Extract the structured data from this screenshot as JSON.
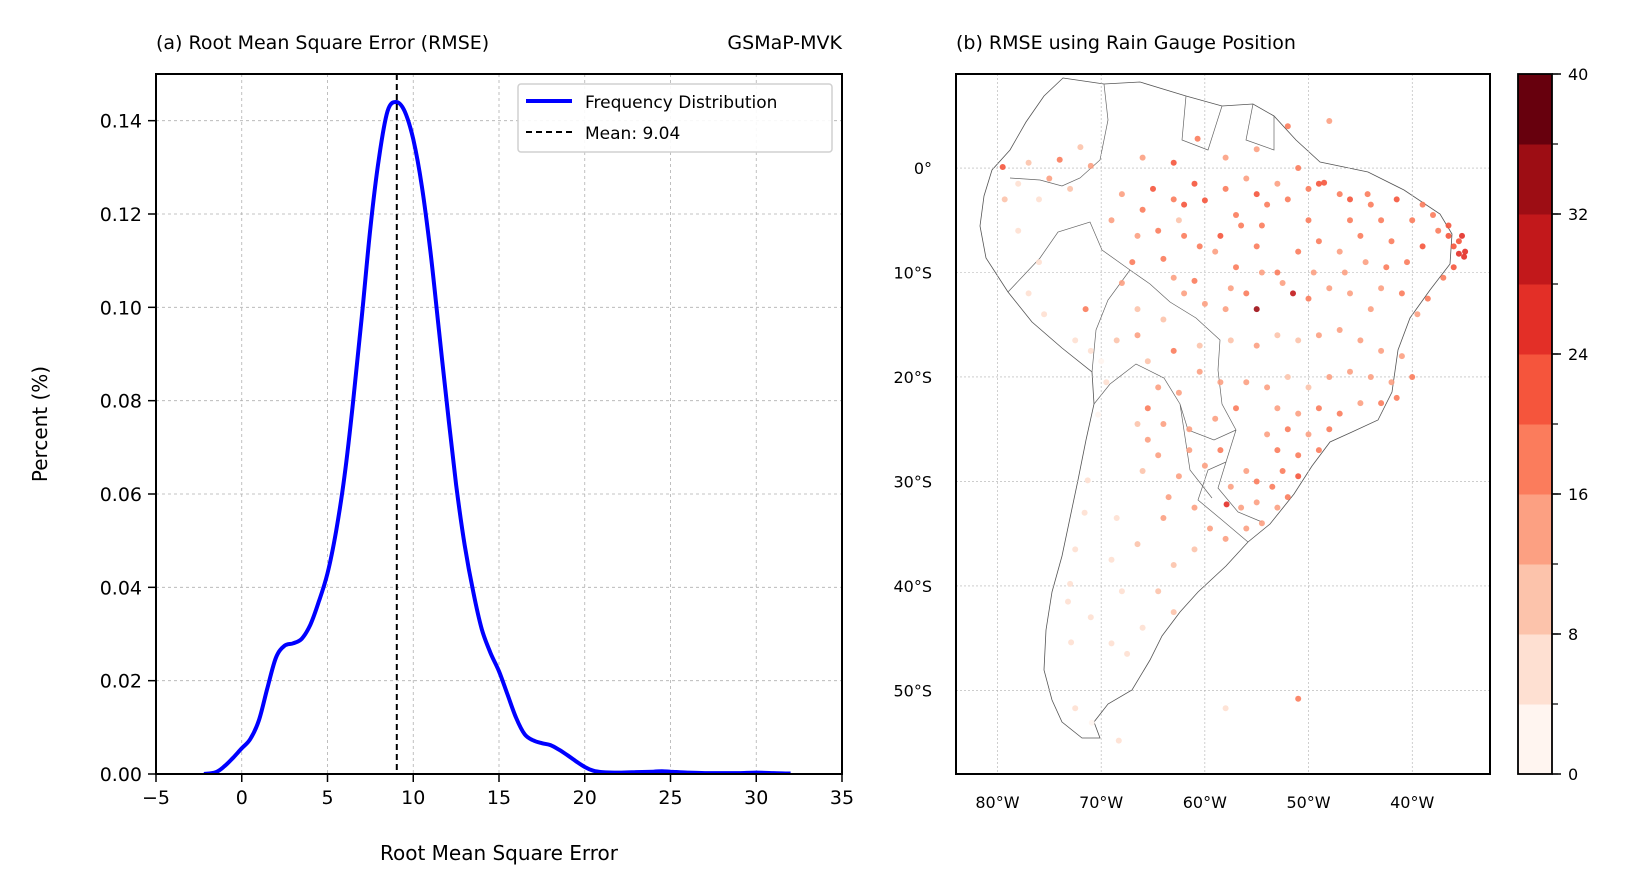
{
  "chart_data": [
    {
      "type": "line",
      "title": "(a) Root Mean Square Error (RMSE)",
      "title_right": "GSMaP-MVK",
      "xlabel": "Root Mean Square Error",
      "ylabel": "Percent (%)",
      "xlim": [
        -5,
        35
      ],
      "ylim": [
        0,
        0.15
      ],
      "xticks": [
        -5,
        0,
        5,
        10,
        15,
        20,
        25,
        30,
        35
      ],
      "xtick_labels": [
        "−5",
        "0",
        "5",
        "10",
        "15",
        "20",
        "25",
        "30",
        "35"
      ],
      "yticks": [
        0,
        0.02,
        0.04,
        0.06,
        0.08,
        0.1,
        0.12,
        0.14
      ],
      "ytick_labels": [
        "0.00",
        "0.02",
        "0.04",
        "0.06",
        "0.08",
        "0.10",
        "0.12",
        "0.14"
      ],
      "grid": true,
      "legend_position": "top-right",
      "series": [
        {
          "name": "Frequency Distribution",
          "color": "#0000ff",
          "x": [
            -2.2,
            -1.5,
            -1.0,
            -0.5,
            0.0,
            0.5,
            1.0,
            1.5,
            2.0,
            2.5,
            3.0,
            3.5,
            4.0,
            4.5,
            5.0,
            5.5,
            6.0,
            6.5,
            7.0,
            7.5,
            8.0,
            8.5,
            9.0,
            9.5,
            10.0,
            10.5,
            11.0,
            11.5,
            12.0,
            12.5,
            13.0,
            13.5,
            14.0,
            14.5,
            15.0,
            15.5,
            16.0,
            16.5,
            17.0,
            17.5,
            18.0,
            18.5,
            19.0,
            19.5,
            20.0,
            20.5,
            21.0,
            22.0,
            23.0,
            24.0,
            24.5,
            25.0,
            26.0,
            27.0,
            28.0,
            29.0,
            30.0,
            31.0,
            32.0
          ],
          "y": [
            0.0,
            0.0004,
            0.0017,
            0.0035,
            0.0055,
            0.0075,
            0.0115,
            0.0185,
            0.025,
            0.0275,
            0.028,
            0.029,
            0.032,
            0.037,
            0.043,
            0.052,
            0.064,
            0.08,
            0.098,
            0.117,
            0.132,
            0.142,
            0.144,
            0.142,
            0.136,
            0.126,
            0.112,
            0.095,
            0.078,
            0.062,
            0.049,
            0.039,
            0.031,
            0.026,
            0.022,
            0.017,
            0.012,
            0.0085,
            0.0072,
            0.0066,
            0.0062,
            0.0052,
            0.004,
            0.0027,
            0.0015,
            0.0007,
            0.0004,
            0.0003,
            0.0004,
            0.0005,
            0.0006,
            0.0005,
            0.0003,
            0.0002,
            0.0002,
            0.0002,
            0.0003,
            0.0002,
            0.0001
          ]
        }
      ],
      "mean_line": {
        "name": "Mean: 9.04",
        "value": 9.04,
        "color": "#000000"
      }
    },
    {
      "type": "scatter",
      "title": "(b) RMSE using Rain Gauge Position",
      "xlim": [
        -84,
        -32.5
      ],
      "ylim": [
        -58,
        9
      ],
      "xticks": [
        -80,
        -70,
        -60,
        -50,
        -40
      ],
      "xtick_labels": [
        "80°W",
        "70°W",
        "60°W",
        "50°W",
        "40°W"
      ],
      "yticks": [
        0,
        -10,
        -20,
        -30,
        -40,
        -50
      ],
      "ytick_labels": [
        "0°",
        "10°S",
        "20°S",
        "30°S",
        "40°S",
        "50°S"
      ],
      "grid": true,
      "colorbar": {
        "ticks": [
          0,
          8,
          16,
          24,
          32,
          40
        ],
        "tick_labels": [
          "0",
          "8",
          "16",
          "24",
          "32",
          "40"
        ],
        "colors": [
          "#fff5f0",
          "#fee0d2",
          "#fcc3ab",
          "#fca082",
          "#fb7c5c",
          "#f5553c",
          "#e32f27",
          "#c2181b",
          "#9d0d14",
          "#67000d"
        ]
      },
      "points": [
        [
          -79.5,
          0.1,
          22
        ],
        [
          -79.3,
          -3.0,
          10
        ],
        [
          -78.0,
          -1.5,
          6
        ],
        [
          -77.0,
          0.5,
          9
        ],
        [
          -76.0,
          -3.0,
          7
        ],
        [
          -75.0,
          -1.0,
          12
        ],
        [
          -74.0,
          0.8,
          16
        ],
        [
          -73.0,
          -2.0,
          11
        ],
        [
          -72.0,
          2.0,
          9
        ],
        [
          -71.0,
          0.2,
          14
        ],
        [
          -78.0,
          -6.0,
          5
        ],
        [
          -76.0,
          -9.0,
          4
        ],
        [
          -77.0,
          -12.0,
          4
        ],
        [
          -75.5,
          -14.0,
          5
        ],
        [
          -71.5,
          -13.5,
          16
        ],
        [
          -72.5,
          -16.5,
          6
        ],
        [
          -71.0,
          -17.5,
          4
        ],
        [
          -70.0,
          -18.5,
          3
        ],
        [
          -70.3,
          -23.6,
          3
        ],
        [
          -71.3,
          -29.9,
          4
        ],
        [
          -71.6,
          -33.0,
          4
        ],
        [
          -72.5,
          -36.5,
          5
        ],
        [
          -73.0,
          -39.8,
          4
        ],
        [
          -73.2,
          -41.5,
          5
        ],
        [
          -72.9,
          -45.4,
          5
        ],
        [
          -72.5,
          -51.7,
          6
        ],
        [
          -70.9,
          -53.1,
          3
        ],
        [
          -68.3,
          -54.8,
          4
        ],
        [
          -58.0,
          -51.7,
          7
        ],
        [
          -51.0,
          -50.8,
          18
        ],
        [
          -68.0,
          -2.5,
          14
        ],
        [
          -66.0,
          -4.0,
          17
        ],
        [
          -65.0,
          -2.0,
          22
        ],
        [
          -63.0,
          -3.0,
          19
        ],
        [
          -62.5,
          -5.0,
          11
        ],
        [
          -61.0,
          -1.5,
          21
        ],
        [
          -60.0,
          -3.1,
          22
        ],
        [
          -58.0,
          -2.0,
          18
        ],
        [
          -57.0,
          -4.5,
          19
        ],
        [
          -56.0,
          -1.0,
          15
        ],
        [
          -55.0,
          -2.5,
          21
        ],
        [
          -54.0,
          -3.5,
          17
        ],
        [
          -53.0,
          -1.5,
          14
        ],
        [
          -52.0,
          -3.0,
          18
        ],
        [
          -50.0,
          -2.0,
          16
        ],
        [
          -49.0,
          -1.5,
          20
        ],
        [
          -48.5,
          -1.4,
          23
        ],
        [
          -47.0,
          -2.5,
          18
        ],
        [
          -46.0,
          -3.0,
          21
        ],
        [
          -44.3,
          -2.5,
          17
        ],
        [
          -66.0,
          1.0,
          15
        ],
        [
          -63.0,
          0.5,
          20
        ],
        [
          -60.7,
          2.8,
          16
        ],
        [
          -58.0,
          1.0,
          13
        ],
        [
          -55.0,
          1.8,
          15
        ],
        [
          -52.0,
          4.0,
          19
        ],
        [
          -51.0,
          0.0,
          16
        ],
        [
          -48.0,
          4.5,
          14
        ],
        [
          -67.0,
          -9.0,
          17
        ],
        [
          -64.0,
          -8.7,
          19
        ],
        [
          -63.0,
          -10.5,
          13
        ],
        [
          -61.0,
          -10.8,
          16
        ],
        [
          -59.0,
          -8.0,
          15
        ],
        [
          -57.0,
          -9.5,
          17
        ],
        [
          -55.0,
          -7.5,
          19
        ],
        [
          -53.0,
          -10.0,
          18
        ],
        [
          -51.0,
          -8.0,
          16
        ],
        [
          -49.0,
          -7.0,
          18
        ],
        [
          -47.0,
          -8.0,
          15
        ],
        [
          -45.0,
          -6.5,
          17
        ],
        [
          -43.0,
          -5.0,
          18
        ],
        [
          -42.0,
          -7.0,
          19
        ],
        [
          -40.0,
          -5.0,
          16
        ],
        [
          -39.0,
          -7.5,
          20
        ],
        [
          -38.0,
          -4.5,
          17
        ],
        [
          -36.5,
          -5.5,
          21
        ],
        [
          -35.5,
          -7.0,
          22
        ],
        [
          -35.0,
          -8.5,
          24
        ],
        [
          -34.9,
          -8.0,
          26
        ],
        [
          -36.0,
          -9.5,
          21
        ],
        [
          -37.0,
          -10.5,
          18
        ],
        [
          -38.5,
          -12.5,
          17
        ],
        [
          -39.5,
          -14.0,
          15
        ],
        [
          -41.0,
          -12.0,
          16
        ],
        [
          -43.0,
          -11.5,
          14
        ],
        [
          -44.0,
          -13.5,
          15
        ],
        [
          -46.0,
          -12.0,
          14
        ],
        [
          -48.0,
          -11.5,
          13
        ],
        [
          -50.0,
          -12.5,
          16
        ],
        [
          -51.5,
          -12.0,
          30
        ],
        [
          -55.0,
          -13.5,
          34
        ],
        [
          -56.0,
          -12.0,
          17
        ],
        [
          -58.0,
          -13.5,
          14
        ],
        [
          -60.0,
          -13.0,
          12
        ],
        [
          -62.0,
          -12.0,
          13
        ],
        [
          -64.0,
          -14.5,
          10
        ],
        [
          -66.5,
          -13.5,
          11
        ],
        [
          -68.0,
          -11.0,
          12
        ],
        [
          -63.0,
          -17.5,
          17
        ],
        [
          -60.5,
          -17.0,
          9
        ],
        [
          -57.5,
          -16.5,
          10
        ],
        [
          -55.0,
          -17.0,
          12
        ],
        [
          -53.0,
          -16.0,
          11
        ],
        [
          -51.0,
          -16.5,
          10
        ],
        [
          -49.0,
          -16.0,
          12
        ],
        [
          -47.0,
          -15.5,
          13
        ],
        [
          -45.0,
          -16.5,
          14
        ],
        [
          -43.0,
          -17.5,
          13
        ],
        [
          -41.0,
          -18.0,
          14
        ],
        [
          -40.0,
          -20.0,
          16
        ],
        [
          -42.0,
          -20.5,
          15
        ],
        [
          -44.0,
          -20.0,
          14
        ],
        [
          -46.0,
          -19.5,
          13
        ],
        [
          -48.0,
          -20.0,
          12
        ],
        [
          -50.0,
          -21.0,
          11
        ],
        [
          -52.0,
          -20.0,
          10
        ],
        [
          -54.0,
          -21.0,
          12
        ],
        [
          -56.0,
          -20.5,
          13
        ],
        [
          -53.0,
          -23.0,
          15
        ],
        [
          -51.0,
          -23.5,
          14
        ],
        [
          -49.0,
          -23.0,
          16
        ],
        [
          -47.0,
          -23.5,
          18
        ],
        [
          -45.0,
          -22.5,
          15
        ],
        [
          -43.0,
          -22.5,
          17
        ],
        [
          -41.5,
          -22.0,
          16
        ],
        [
          -48.0,
          -25.0,
          17
        ],
        [
          -50.0,
          -25.5,
          15
        ],
        [
          -52.0,
          -25.0,
          16
        ],
        [
          -54.0,
          -25.5,
          14
        ],
        [
          -49.0,
          -27.0,
          18
        ],
        [
          -51.0,
          -27.5,
          17
        ],
        [
          -53.0,
          -27.0,
          16
        ],
        [
          -52.5,
          -29.0,
          19
        ],
        [
          -51.0,
          -29.5,
          20
        ],
        [
          -53.5,
          -30.5,
          17
        ],
        [
          -55.0,
          -30.0,
          16
        ],
        [
          -56.0,
          -29.0,
          15
        ],
        [
          -57.5,
          -30.5,
          14
        ],
        [
          -56.5,
          -32.5,
          13
        ],
        [
          -55.0,
          -32.0,
          12
        ],
        [
          -53.0,
          -32.5,
          15
        ],
        [
          -52.0,
          -31.5,
          18
        ],
        [
          -54.5,
          -34.0,
          14
        ],
        [
          -56.0,
          -34.5,
          13
        ],
        [
          -57.9,
          -32.2,
          26
        ],
        [
          -58.5,
          -27.0,
          17
        ],
        [
          -60.0,
          -28.5,
          14
        ],
        [
          -61.5,
          -27.0,
          13
        ],
        [
          -62.5,
          -29.5,
          12
        ],
        [
          -63.5,
          -31.5,
          13
        ],
        [
          -64.5,
          -27.5,
          14
        ],
        [
          -65.5,
          -26.0,
          12
        ],
        [
          -66.0,
          -29.0,
          11
        ],
        [
          -64.0,
          -33.5,
          12
        ],
        [
          -61.0,
          -32.5,
          13
        ],
        [
          -59.5,
          -34.5,
          14
        ],
        [
          -58.0,
          -35.5,
          12
        ],
        [
          -61.0,
          -36.5,
          10
        ],
        [
          -63.0,
          -38.0,
          11
        ],
        [
          -64.5,
          -40.5,
          9
        ],
        [
          -66.5,
          -36.0,
          8
        ],
        [
          -68.5,
          -33.5,
          6
        ],
        [
          -69.0,
          -37.5,
          7
        ],
        [
          -68.0,
          -40.5,
          6
        ],
        [
          -66.0,
          -44.0,
          7
        ],
        [
          -69.0,
          -45.5,
          5
        ],
        [
          -67.5,
          -46.5,
          6
        ],
        [
          -71.0,
          -43.0,
          5
        ],
        [
          -63.0,
          -42.5,
          10
        ],
        [
          -61.5,
          -25.0,
          15
        ],
        [
          -59.0,
          -24.0,
          14
        ],
        [
          -57.0,
          -23.0,
          16
        ],
        [
          -58.5,
          -20.5,
          13
        ],
        [
          -60.5,
          -19.5,
          12
        ],
        [
          -62.5,
          -21.5,
          15
        ],
        [
          -64.5,
          -21.0,
          12
        ],
        [
          -65.5,
          -18.5,
          11
        ],
        [
          -66.5,
          -16.0,
          13
        ],
        [
          -68.5,
          -16.5,
          10
        ],
        [
          -69.5,
          -20.5,
          6
        ],
        [
          -65.5,
          -23.0,
          16
        ],
        [
          -64.0,
          -24.5,
          13
        ],
        [
          -66.5,
          -24.5,
          10
        ],
        [
          -62.0,
          -3.5,
          20
        ],
        [
          -58.5,
          -6.5,
          21
        ],
        [
          -56.5,
          -5.5,
          17
        ],
        [
          -54.5,
          -5.5,
          18
        ],
        [
          -50.0,
          -5.0,
          17
        ],
        [
          -46.0,
          -5.0,
          19
        ],
        [
          -44.0,
          -3.5,
          18
        ],
        [
          -41.5,
          -3.0,
          20
        ],
        [
          -39.0,
          -3.5,
          18
        ],
        [
          -37.5,
          -6.0,
          19
        ],
        [
          -36.0,
          -7.5,
          23
        ],
        [
          -35.5,
          -8.2,
          26
        ],
        [
          -35.2,
          -6.5,
          24
        ],
        [
          -36.5,
          -6.5,
          21
        ],
        [
          -40.5,
          -9.0,
          17
        ],
        [
          -42.5,
          -9.5,
          16
        ],
        [
          -44.5,
          -9.0,
          15
        ],
        [
          -46.5,
          -10.0,
          15
        ],
        [
          -49.5,
          -10.0,
          14
        ],
        [
          -52.5,
          -11.0,
          13
        ],
        [
          -54.5,
          -10.0,
          15
        ],
        [
          -57.5,
          -11.5,
          14
        ],
        [
          -60.5,
          -7.5,
          18
        ],
        [
          -62.0,
          -6.5,
          16
        ],
        [
          -64.5,
          -6.0,
          18
        ],
        [
          -66.5,
          -6.5,
          15
        ],
        [
          -69.0,
          -5.0,
          14
        ]
      ]
    }
  ],
  "legend": {
    "line_label": "Frequency Distribution",
    "mean_label": "Mean: 9.04"
  }
}
